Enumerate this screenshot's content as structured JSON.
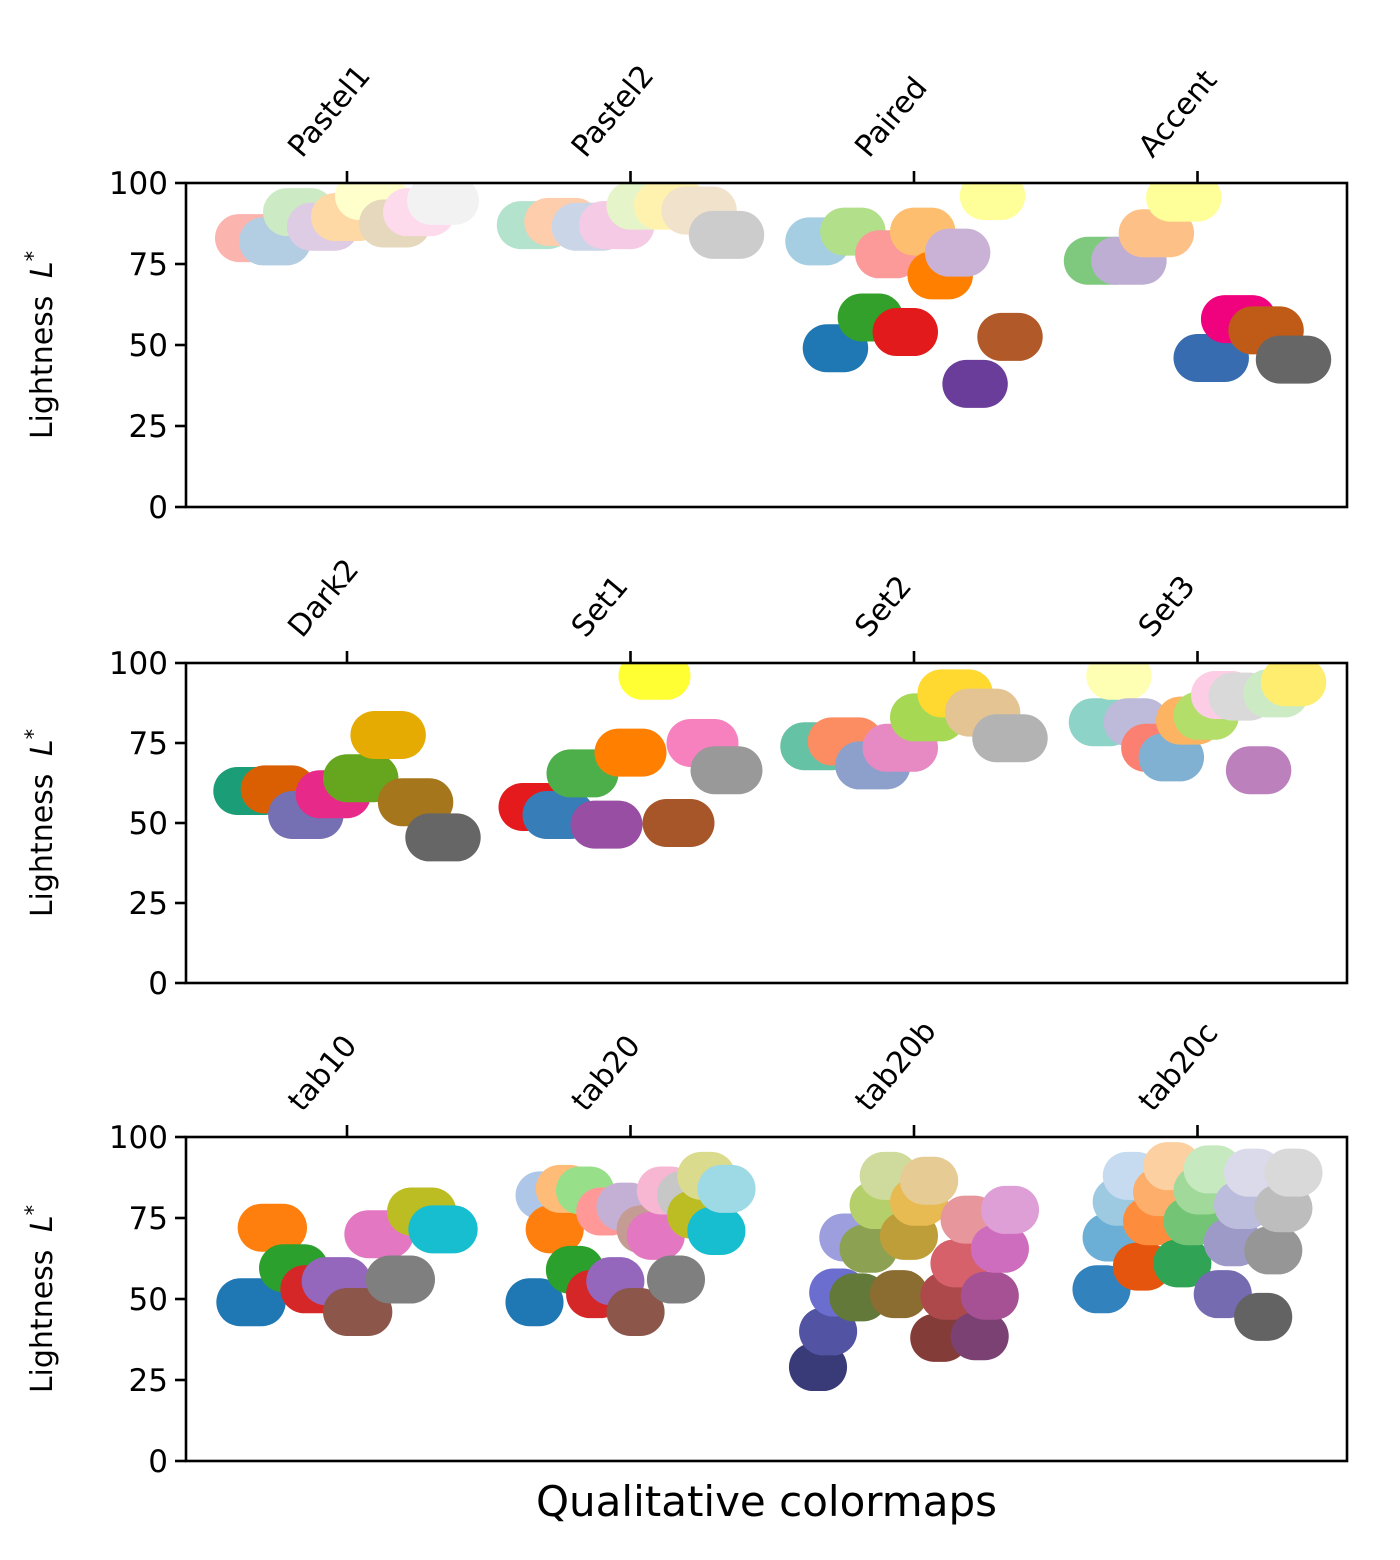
{
  "chart_data": {
    "type": "scatter",
    "xlabel": "Qualitative colormaps",
    "ylabel": "Lightness L*",
    "ylabel_parts": {
      "prefix": "Lightness ",
      "variable": "L",
      "superscript": "*"
    },
    "ylim": [
      0,
      100
    ],
    "yticks": [
      "0",
      "25",
      "50",
      "75",
      "100"
    ],
    "grid": false,
    "legend": "none",
    "marker": "large filled circle, colored by colormap entry",
    "rows": [
      {
        "groups": [
          {
            "name": "Pastel1",
            "colors": [
              "#fbb4ae",
              "#b3cde3",
              "#ccebc5",
              "#decbe4",
              "#fed9a6",
              "#ffffcc",
              "#e5d8bd",
              "#fddaec",
              "#f2f2f2"
            ],
            "lightness": [
              83,
              82,
              91,
              86.5,
              89.5,
              96,
              87.5,
              91,
              94.5
            ]
          },
          {
            "name": "Pastel2",
            "colors": [
              "#b3e2cd",
              "#fdcdac",
              "#cbd5e8",
              "#f4cae4",
              "#e6f5c9",
              "#fff2ae",
              "#f1e2cc",
              "#cccccc"
            ],
            "lightness": [
              87,
              88,
              86.5,
              87,
              93,
              93,
              91.5,
              84
            ]
          },
          {
            "name": "Paired",
            "colors": [
              "#a6cee3",
              "#1f78b4",
              "#b2df8a",
              "#33a02c",
              "#fb9a99",
              "#e31a1c",
              "#fdbf6f",
              "#ff7f00",
              "#cab2d6",
              "#6a3d9a",
              "#ffff99",
              "#b15928"
            ],
            "lightness": [
              82,
              49,
              85,
              58.5,
              78,
              54,
              85,
              71.5,
              78.5,
              38,
              96,
              52.5
            ]
          },
          {
            "name": "Accent",
            "colors": [
              "#7fc97f",
              "#beaed4",
              "#fdc086",
              "#ffff99",
              "#386cb0",
              "#f0027f",
              "#bf5b17",
              "#666666"
            ],
            "lightness": [
              76,
              76,
              84.5,
              95.5,
              46,
              58,
              54.5,
              45.5
            ]
          }
        ]
      },
      {
        "groups": [
          {
            "name": "Dark2",
            "colors": [
              "#1b9e77",
              "#d95f02",
              "#7570b3",
              "#e7298a",
              "#66a61e",
              "#e6ab02",
              "#a6761d",
              "#666666"
            ],
            "lightness": [
              60,
              60.5,
              52.5,
              59,
              64,
              77.5,
              56.5,
              45.5
            ]
          },
          {
            "name": "Set1",
            "colors": [
              "#e41a1c",
              "#377eb8",
              "#4daf4a",
              "#984ea3",
              "#ff7f00",
              "#ffff33",
              "#a65628",
              "#f781bf",
              "#999999"
            ],
            "lightness": [
              55,
              52.5,
              65.5,
              49.5,
              72,
              96,
              50,
              75,
              66.5
            ]
          },
          {
            "name": "Set2",
            "colors": [
              "#66c2a5",
              "#fc8d62",
              "#8da0cb",
              "#e78ac3",
              "#a6d854",
              "#ffd92f",
              "#e5c494",
              "#b3b3b3"
            ],
            "lightness": [
              74,
              75.5,
              68,
              73.5,
              83,
              90.5,
              84.5,
              76.5
            ]
          },
          {
            "name": "Set3",
            "colors": [
              "#8dd3c7",
              "#ffffb3",
              "#bebada",
              "#fb8072",
              "#80b1d3",
              "#fdb462",
              "#b3de69",
              "#fccde5",
              "#d9d9d9",
              "#bc80bd",
              "#ccebc5",
              "#ffed6f"
            ],
            "lightness": [
              81.5,
              96,
              81.5,
              73.5,
              70.5,
              82,
              83.5,
              90,
              89.5,
              66.5,
              90.5,
              94
            ]
          }
        ]
      },
      {
        "groups": [
          {
            "name": "tab10",
            "colors": [
              "#1f77b4",
              "#ff7f0e",
              "#2ca02c",
              "#d62728",
              "#9467bd",
              "#8c564b",
              "#e377c2",
              "#7f7f7f",
              "#bcbd22",
              "#17becf"
            ],
            "lightness": [
              49,
              72,
              59.5,
              53,
              55.5,
              46,
              70,
              56,
              77,
              71.5
            ]
          },
          {
            "name": "tab20",
            "colors": [
              "#1f77b4",
              "#aec7e8",
              "#ff7f0e",
              "#ffbb78",
              "#2ca02c",
              "#98df8a",
              "#d62728",
              "#ff9896",
              "#9467bd",
              "#c5b0d5",
              "#8c564b",
              "#c49c94",
              "#e377c2",
              "#f7b6d2",
              "#7f7f7f",
              "#c7c7c7",
              "#bcbd22",
              "#dbdb8d",
              "#17becf",
              "#9edae5"
            ],
            "lightness": [
              49,
              82,
              71.5,
              84,
              59,
              83.5,
              51.5,
              77,
              55.5,
              78.5,
              46,
              71.5,
              69.5,
              83.5,
              56,
              82,
              76,
              88,
              71,
              84
            ]
          },
          {
            "name": "tab20b",
            "colors": [
              "#393b79",
              "#5254a3",
              "#6b6ecf",
              "#9c9ede",
              "#637939",
              "#8ca252",
              "#b5cf6b",
              "#cedb9c",
              "#8c6d31",
              "#bd9e39",
              "#e7ba52",
              "#e7cb94",
              "#843c39",
              "#ad494a",
              "#d6616b",
              "#e7969c",
              "#7b4173",
              "#a55194",
              "#ce6dbd",
              "#de9ed6"
            ],
            "lightness": [
              29,
              40,
              52,
              69,
              50.5,
              65.5,
              79,
              88,
              51.5,
              69.5,
              80,
              86.5,
              38,
              51,
              61,
              74.5,
              38.5,
              51,
              65.5,
              77.5
            ]
          },
          {
            "name": "tab20c",
            "colors": [
              "#3182bd",
              "#6baed6",
              "#9ecae1",
              "#c6dbef",
              "#e6550d",
              "#fd8d3c",
              "#fdae6b",
              "#fdd0a2",
              "#31a354",
              "#74c476",
              "#a1d99b",
              "#c7e9c0",
              "#756bb1",
              "#9e9ac8",
              "#bcbddc",
              "#dadaeb",
              "#636363",
              "#969696",
              "#bdbdbd",
              "#d9d9d9"
            ],
            "lightness": [
              53,
              69,
              80,
              88,
              60,
              74,
              83,
              91,
              61,
              74,
              83.5,
              90,
              51.5,
              67.5,
              79,
              89,
              44.5,
              65,
              78,
              89
            ]
          }
        ]
      }
    ]
  }
}
